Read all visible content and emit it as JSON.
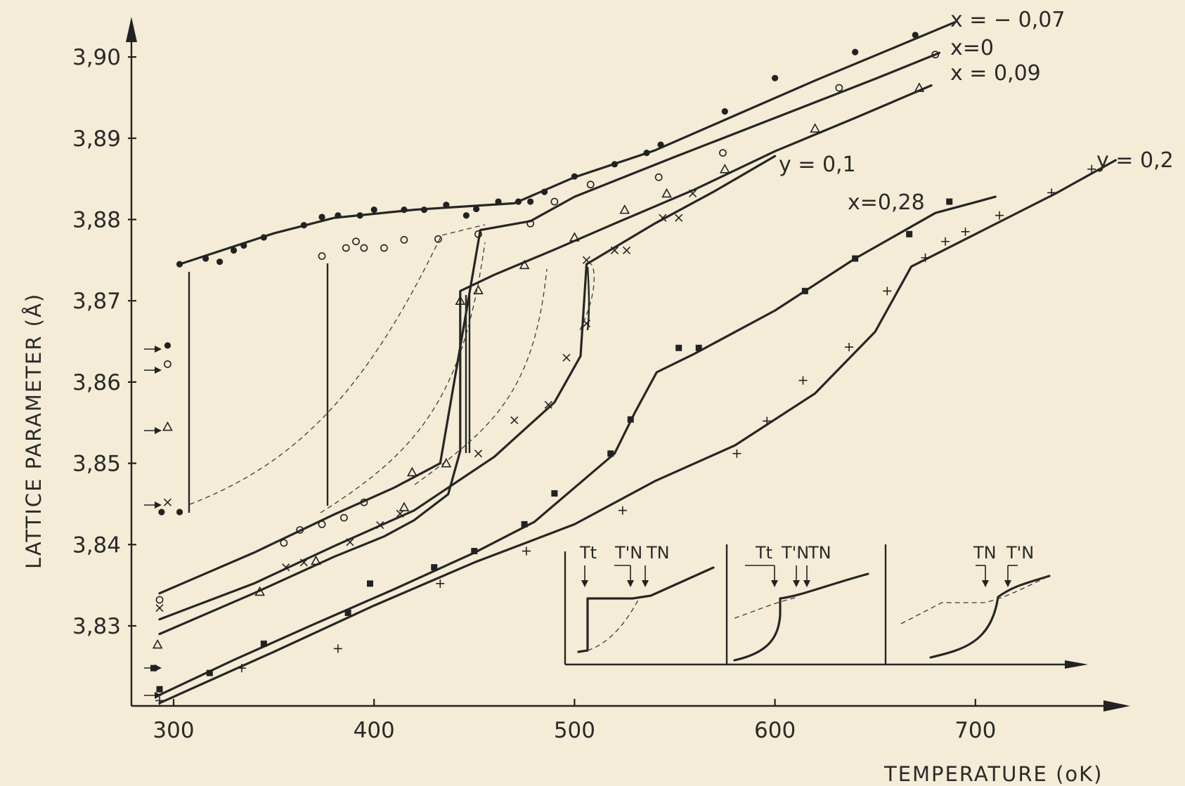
{
  "chart_data": {
    "type": "scatter",
    "title": "",
    "xlabel": "TEMPERATURE (oK)",
    "ylabel": "LATTICE PARAMETER (Å)",
    "xlim": [
      275,
      775
    ],
    "ylim": [
      3.81,
      3.906
    ],
    "x_ticks": [
      300,
      400,
      500,
      600,
      700
    ],
    "x_tick_labels": [
      "300",
      "400",
      "500",
      "600",
      "700"
    ],
    "y_ticks": [
      3.83,
      3.84,
      3.85,
      3.86,
      3.87,
      3.88,
      3.89,
      3.9
    ],
    "y_tick_labels": [
      "3,83",
      "3,84",
      "3,85",
      "3,86",
      "3,87",
      "3,88",
      "3,89",
      "3,90"
    ],
    "grid": false,
    "series": [
      {
        "name": "x = − 0,07",
        "marker": "filled-circle",
        "points": [
          [
            294,
            3.844
          ],
          [
            297,
            3.8645
          ],
          [
            303,
            3.844
          ],
          [
            303,
            3.8745
          ],
          [
            316,
            3.8752
          ],
          [
            323,
            3.8748
          ],
          [
            330,
            3.8762
          ],
          [
            335,
            3.8768
          ],
          [
            345,
            3.8778
          ],
          [
            365,
            3.8793
          ],
          [
            374,
            3.8803
          ],
          [
            382,
            3.8805
          ],
          [
            393,
            3.8805
          ],
          [
            400,
            3.8812
          ],
          [
            415,
            3.8812
          ],
          [
            425,
            3.8812
          ],
          [
            436,
            3.8818
          ],
          [
            446,
            3.8805
          ],
          [
            451,
            3.8813
          ],
          [
            462,
            3.8822
          ],
          [
            472,
            3.8822
          ],
          [
            478,
            3.8822
          ],
          [
            485,
            3.8834
          ],
          [
            500,
            3.8853
          ],
          [
            520,
            3.8868
          ],
          [
            536,
            3.8882
          ],
          [
            543,
            3.8892
          ],
          [
            575,
            3.8933
          ],
          [
            600,
            3.8974
          ],
          [
            640,
            3.9006
          ],
          [
            670,
            3.9027
          ]
        ],
        "curve": [
          [
            303,
            3.8745
          ],
          [
            350,
            3.8783
          ],
          [
            380,
            3.8802
          ],
          [
            420,
            3.8812
          ],
          [
            470,
            3.882
          ],
          [
            500,
            3.8852
          ],
          [
            540,
            3.8885
          ],
          [
            580,
            3.8928
          ],
          [
            620,
            3.8971
          ],
          [
            660,
            3.9012
          ],
          [
            690,
            3.9043
          ]
        ]
      },
      {
        "name": "x=0",
        "marker": "open-circle",
        "points": [
          [
            293,
            3.8332
          ],
          [
            297,
            3.8622
          ],
          [
            355,
            3.8402
          ],
          [
            363,
            3.8418
          ],
          [
            374,
            3.8425
          ],
          [
            374,
            3.8755
          ],
          [
            385,
            3.8433
          ],
          [
            386,
            3.8765
          ],
          [
            391,
            3.8773
          ],
          [
            395,
            3.8452
          ],
          [
            395,
            3.8765
          ],
          [
            405,
            3.8765
          ],
          [
            415,
            3.8775
          ],
          [
            432,
            3.8776
          ],
          [
            452,
            3.8782
          ],
          [
            478,
            3.8795
          ],
          [
            490,
            3.8822
          ],
          [
            508,
            3.8843
          ],
          [
            542,
            3.8852
          ],
          [
            574,
            3.8882
          ],
          [
            632,
            3.8962
          ],
          [
            680,
            3.9003
          ]
        ],
        "curve": [
          [
            293,
            3.834
          ],
          [
            340,
            3.839
          ],
          [
            380,
            3.8437
          ],
          [
            410,
            3.847
          ],
          [
            433,
            3.85
          ],
          [
            453,
            3.8787
          ],
          [
            478,
            3.8798
          ],
          [
            500,
            3.8828
          ],
          [
            550,
            3.8877
          ],
          [
            600,
            3.8925
          ],
          [
            650,
            3.8973
          ],
          [
            682,
            3.9005
          ]
        ]
      },
      {
        "name": "x = 0,09",
        "marker": "triangle",
        "points": [
          [
            292,
            3.8277
          ],
          [
            297,
            3.8545
          ],
          [
            343,
            3.8342
          ],
          [
            371,
            3.838
          ],
          [
            415,
            3.8446
          ],
          [
            419,
            3.8489
          ],
          [
            436,
            3.85
          ],
          [
            443,
            3.87
          ],
          [
            452,
            3.8713
          ],
          [
            475,
            3.8744
          ],
          [
            500,
            3.8778
          ],
          [
            525,
            3.8812
          ],
          [
            546,
            3.8832
          ],
          [
            575,
            3.8862
          ],
          [
            620,
            3.8912
          ],
          [
            672,
            3.8962
          ]
        ],
        "curve": [
          [
            293,
            3.829
          ],
          [
            340,
            3.834
          ],
          [
            380,
            3.8385
          ],
          [
            405,
            3.841
          ],
          [
            420,
            3.843
          ],
          [
            437,
            3.8462
          ],
          [
            443,
            3.8515
          ],
          [
            443,
            3.8712
          ],
          [
            460,
            3.8732
          ],
          [
            490,
            3.8763
          ],
          [
            520,
            3.8795
          ],
          [
            560,
            3.8837
          ],
          [
            600,
            3.8884
          ],
          [
            640,
            3.8925
          ],
          [
            678,
            3.8965
          ]
        ]
      },
      {
        "name": "y = 0,1",
        "marker": "cross-x",
        "points": [
          [
            293,
            3.8322
          ],
          [
            297,
            3.8452
          ],
          [
            356,
            3.8372
          ],
          [
            365,
            3.8378
          ],
          [
            388,
            3.8403
          ],
          [
            403,
            3.8424
          ],
          [
            413,
            3.8438
          ],
          [
            452,
            3.8512
          ],
          [
            470,
            3.8553
          ],
          [
            487,
            3.8572
          ],
          [
            496,
            3.863
          ],
          [
            506,
            3.8672
          ],
          [
            506,
            3.875
          ],
          [
            520,
            3.8762
          ],
          [
            526,
            3.8762
          ],
          [
            544,
            3.8802
          ],
          [
            552,
            3.8802
          ],
          [
            559,
            3.8832
          ]
        ],
        "curve": [
          [
            293,
            3.8308
          ],
          [
            340,
            3.8352
          ],
          [
            380,
            3.8398
          ],
          [
            420,
            3.8442
          ],
          [
            460,
            3.8508
          ],
          [
            490,
            3.8575
          ],
          [
            503,
            3.8632
          ],
          [
            506,
            3.8745
          ],
          [
            540,
            3.8795
          ],
          [
            570,
            3.8835
          ],
          [
            600,
            3.8878
          ]
        ]
      },
      {
        "name": "x=0,28",
        "marker": "filled-square",
        "points": [
          [
            290,
            3.8248
          ],
          [
            293,
            3.8222
          ],
          [
            318,
            3.8242
          ],
          [
            345,
            3.8278
          ],
          [
            387,
            3.8316
          ],
          [
            398,
            3.8352
          ],
          [
            430,
            3.8372
          ],
          [
            450,
            3.8392
          ],
          [
            475,
            3.8425
          ],
          [
            490,
            3.8463
          ],
          [
            518,
            3.8512
          ],
          [
            528,
            3.8554
          ],
          [
            552,
            3.8642
          ],
          [
            562,
            3.8642
          ],
          [
            615,
            3.8712
          ],
          [
            640,
            3.8752
          ],
          [
            667,
            3.8782
          ],
          [
            687,
            3.8822
          ]
        ],
        "curve": [
          [
            293,
            3.8215
          ],
          [
            330,
            3.8258
          ],
          [
            370,
            3.8302
          ],
          [
            410,
            3.8345
          ],
          [
            450,
            3.839
          ],
          [
            480,
            3.8428
          ],
          [
            500,
            3.847
          ],
          [
            520,
            3.8512
          ],
          [
            530,
            3.8562
          ],
          [
            541,
            3.8612
          ],
          [
            560,
            3.8635
          ],
          [
            600,
            3.8688
          ],
          [
            640,
            3.8752
          ],
          [
            680,
            3.8808
          ],
          [
            710,
            3.8828
          ]
        ]
      },
      {
        "name": "y = 0,2",
        "marker": "plus",
        "points": [
          [
            293,
            3.8208
          ],
          [
            334,
            3.8248
          ],
          [
            382,
            3.8272
          ],
          [
            433,
            3.8352
          ],
          [
            476,
            3.8392
          ],
          [
            524,
            3.8442
          ],
          [
            581,
            3.8512
          ],
          [
            596,
            3.8552
          ],
          [
            614,
            3.8602
          ],
          [
            637,
            3.8643
          ],
          [
            656,
            3.8712
          ],
          [
            675,
            3.8753
          ],
          [
            685,
            3.8773
          ],
          [
            695,
            3.8785
          ],
          [
            712,
            3.8805
          ],
          [
            738,
            3.8833
          ],
          [
            758,
            3.8862
          ]
        ],
        "curve": [
          [
            293,
            3.8205
          ],
          [
            350,
            3.8268
          ],
          [
            400,
            3.8325
          ],
          [
            450,
            3.8378
          ],
          [
            500,
            3.8425
          ],
          [
            540,
            3.8478
          ],
          [
            580,
            3.8522
          ],
          [
            620,
            3.8586
          ],
          [
            650,
            3.8662
          ],
          [
            668,
            3.8742
          ],
          [
            700,
            3.8782
          ],
          [
            740,
            3.8832
          ],
          [
            770,
            3.8873
          ]
        ]
      }
    ],
    "annotations": [
      "x = − 0,07",
      "x=0",
      "x = 0,09",
      "y = 0,1",
      "x=0,28",
      "y = 0,2"
    ],
    "inset_labels": [
      "Tt",
      "T'N",
      "TN",
      "Tt",
      "T'N",
      "TN",
      "TN",
      "T'N"
    ],
    "legend": "labels at line ends"
  }
}
